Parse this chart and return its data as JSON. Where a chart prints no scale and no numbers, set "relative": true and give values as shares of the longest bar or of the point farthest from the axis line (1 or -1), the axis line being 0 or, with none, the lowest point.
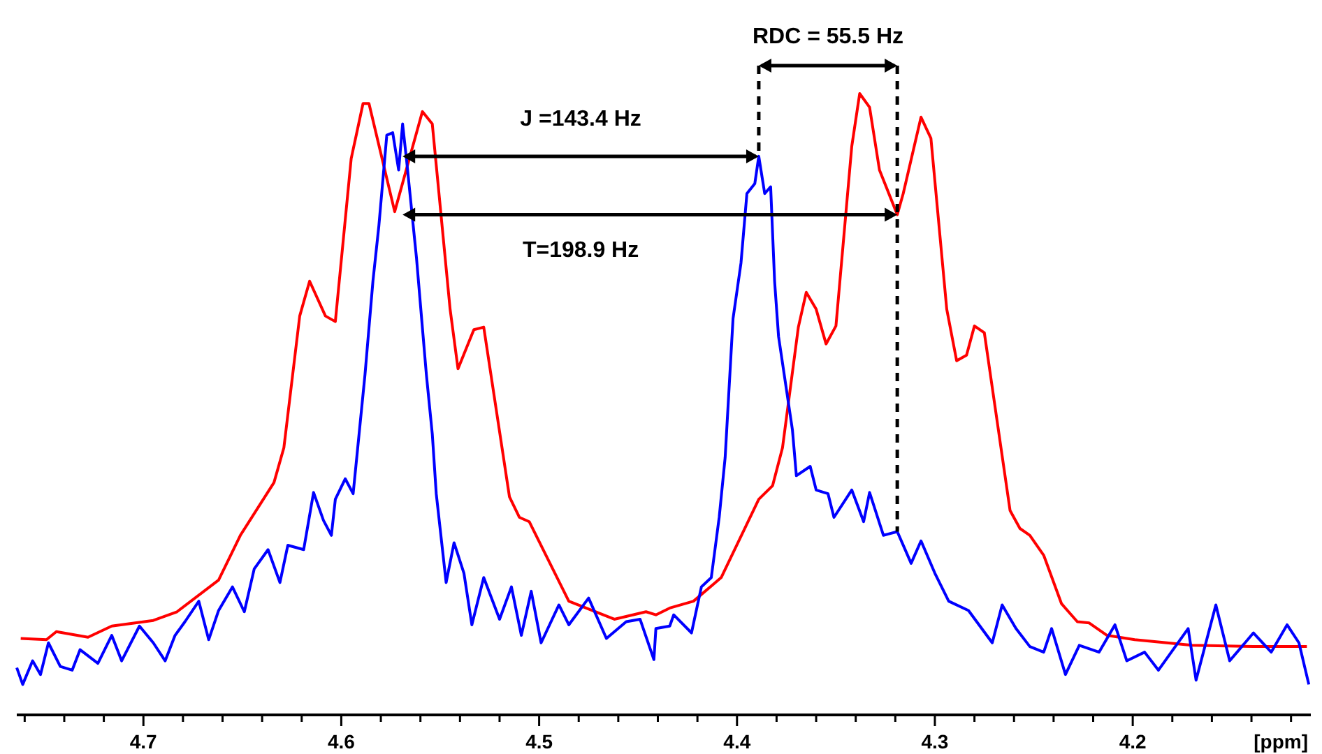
{
  "chart_data": {
    "type": "line",
    "relative": true,
    "xlabel": "[ppm]",
    "xlim": [
      4.764,
      4.11
    ],
    "xticks": [
      {
        "value": 4.76,
        "label": null
      },
      {
        "value": 4.74,
        "label": null
      },
      {
        "value": 4.72,
        "label": null
      },
      4.7,
      {
        "value": 4.68,
        "label": null
      },
      {
        "value": 4.66,
        "label": null
      },
      {
        "value": 4.64,
        "label": null
      },
      {
        "value": 4.62,
        "label": null
      },
      4.6,
      {
        "value": 4.58,
        "label": null
      },
      {
        "value": 4.56,
        "label": null
      },
      {
        "value": 4.54,
        "label": null
      },
      {
        "value": 4.52,
        "label": null
      },
      4.5,
      {
        "value": 4.48,
        "label": null
      },
      {
        "value": 4.46,
        "label": null
      },
      {
        "value": 4.44,
        "label": null
      },
      {
        "value": 4.42,
        "label": null
      },
      4.4,
      {
        "value": 4.38,
        "label": null
      },
      {
        "value": 4.36,
        "label": null
      },
      {
        "value": 4.34,
        "label": null
      },
      {
        "value": 4.32,
        "label": null
      },
      4.3,
      {
        "value": 4.28,
        "label": null
      },
      {
        "value": 4.26,
        "label": null
      },
      {
        "value": 4.24,
        "label": null
      },
      {
        "value": 4.22,
        "label": null
      },
      4.2,
      {
        "value": 4.18,
        "label": null
      },
      {
        "value": 4.16,
        "label": null
      },
      {
        "value": 4.14,
        "label": null
      },
      {
        "value": 4.12,
        "label": null
      }
    ],
    "tick_labels": "x",
    "grid": false,
    "marker": "none",
    "line_style": "solid",
    "series": [
      {
        "color": "#ff0000",
        "x": [
          4.762,
          4.749,
          4.744,
          4.728,
          4.716,
          4.695,
          4.683,
          4.662,
          4.651,
          4.634,
          4.629,
          4.621,
          4.616,
          4.608,
          4.603,
          4.595,
          4.589,
          4.586,
          4.573,
          4.559,
          4.554,
          4.545,
          4.541,
          4.533,
          4.528,
          4.515,
          4.51,
          4.505,
          4.485,
          4.462,
          4.446,
          4.441,
          4.434,
          4.422,
          4.408,
          4.389,
          4.382,
          4.377,
          4.369,
          4.365,
          4.36,
          4.355,
          4.35,
          4.342,
          4.338,
          4.333,
          4.328,
          4.319,
          4.316,
          4.307,
          4.302,
          4.294,
          4.289,
          4.284,
          4.28,
          4.275,
          4.262,
          4.257,
          4.252,
          4.245,
          4.236,
          4.228,
          4.222,
          4.213,
          4.199,
          4.17,
          4.139,
          4.112
        ],
        "values": [
          0.123,
          0.121,
          0.134,
          0.125,
          0.143,
          0.152,
          0.166,
          0.217,
          0.289,
          0.374,
          0.43,
          0.642,
          0.698,
          0.642,
          0.633,
          0.895,
          0.984,
          0.984,
          0.81,
          0.971,
          0.951,
          0.653,
          0.557,
          0.62,
          0.624,
          0.351,
          0.318,
          0.311,
          0.183,
          0.154,
          0.166,
          0.161,
          0.172,
          0.183,
          0.221,
          0.347,
          0.369,
          0.43,
          0.624,
          0.68,
          0.653,
          0.597,
          0.626,
          0.915,
          1,
          0.978,
          0.877,
          0.805,
          0.839,
          0.962,
          0.928,
          0.653,
          0.57,
          0.579,
          0.626,
          0.615,
          0.329,
          0.3,
          0.289,
          0.257,
          0.179,
          0.15,
          0.148,
          0.128,
          0.121,
          0.112,
          0.11,
          0.11
        ]
      },
      {
        "color": "#0000ff",
        "x": [
          4.764,
          4.761,
          4.756,
          4.752,
          4.748,
          4.742,
          4.736,
          4.732,
          4.723,
          4.716,
          4.711,
          4.702,
          4.695,
          4.689,
          4.684,
          4.679,
          4.672,
          4.667,
          4.662,
          4.655,
          4.649,
          4.644,
          4.637,
          4.631,
          4.627,
          4.619,
          4.614,
          4.609,
          4.605,
          4.603,
          4.598,
          4.594,
          4.591,
          4.588,
          4.584,
          4.581,
          4.577,
          4.574,
          4.571,
          4.569,
          4.567,
          4.562,
          4.557,
          4.554,
          4.552,
          4.547,
          4.543,
          4.538,
          4.534,
          4.528,
          4.52,
          4.514,
          4.509,
          4.504,
          4.499,
          4.49,
          4.485,
          4.475,
          4.466,
          4.456,
          4.449,
          4.442,
          4.441,
          4.434,
          4.432,
          4.423,
          4.418,
          4.413,
          4.409,
          4.406,
          4.402,
          4.398,
          4.395,
          4.391,
          4.389,
          4.386,
          4.383,
          4.381,
          4.379,
          4.372,
          4.37,
          4.363,
          4.36,
          4.354,
          4.351,
          4.342,
          4.336,
          4.333,
          4.326,
          4.319,
          4.312,
          4.307,
          4.3,
          4.293,
          4.283,
          4.271,
          4.266,
          4.259,
          4.252,
          4.245,
          4.241,
          4.234,
          4.227,
          4.217,
          4.209,
          4.203,
          4.194,
          4.187,
          4.172,
          4.168,
          4.158,
          4.151,
          4.139,
          4.13,
          4.122,
          4.116,
          4.111
        ],
        "values": [
          0.076,
          0.049,
          0.087,
          0.065,
          0.116,
          0.078,
          0.072,
          0.105,
          0.083,
          0.128,
          0.087,
          0.143,
          0.116,
          0.087,
          0.128,
          0.15,
          0.183,
          0.121,
          0.168,
          0.206,
          0.166,
          0.235,
          0.266,
          0.213,
          0.273,
          0.266,
          0.358,
          0.313,
          0.289,
          0.347,
          0.38,
          0.356,
          0.452,
          0.548,
          0.698,
          0.787,
          0.933,
          0.937,
          0.877,
          0.951,
          0.893,
          0.736,
          0.548,
          0.452,
          0.356,
          0.213,
          0.277,
          0.228,
          0.145,
          0.221,
          0.154,
          0.206,
          0.128,
          0.199,
          0.116,
          0.177,
          0.145,
          0.188,
          0.123,
          0.15,
          0.154,
          0.089,
          0.139,
          0.143,
          0.161,
          0.132,
          0.206,
          0.221,
          0.318,
          0.414,
          0.638,
          0.727,
          0.839,
          0.855,
          0.899,
          0.839,
          0.85,
          0.698,
          0.609,
          0.459,
          0.385,
          0.4,
          0.362,
          0.356,
          0.318,
          0.362,
          0.311,
          0.358,
          0.289,
          0.295,
          0.244,
          0.28,
          0.228,
          0.183,
          0.168,
          0.116,
          0.177,
          0.139,
          0.11,
          0.101,
          0.139,
          0.065,
          0.112,
          0.101,
          0.145,
          0.087,
          0.101,
          0.072,
          0.139,
          0.056,
          0.177,
          0.087,
          0.132,
          0.101,
          0.145,
          0.116,
          0.049
        ]
      }
    ],
    "ref_lines": [
      {
        "axis": "x",
        "value": 4.389,
        "label": null,
        "line_style": "dashed",
        "color": "#000000"
      },
      {
        "axis": "x",
        "value": 4.319,
        "label": null,
        "line_style": "dashed",
        "color": "#000000"
      }
    ],
    "annotations": [
      "J =143.4 Hz",
      "T=198.9 Hz",
      "RDC = 55.5 Hz"
    ]
  }
}
